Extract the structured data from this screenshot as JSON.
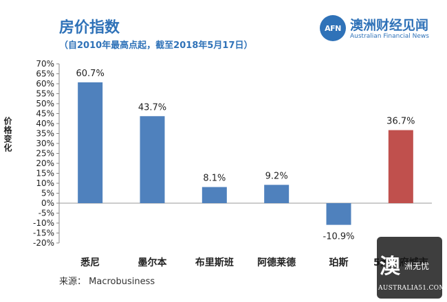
{
  "header": {
    "title": "房价指数",
    "subtitle": "（自2010年最高点起，截至2018年5月17日）"
  },
  "logo": {
    "mark": "AFN",
    "cn": "澳洲财经见闻",
    "en": "Australian Financial News"
  },
  "source": "来源： Macrobusiness",
  "watermark_badge": {
    "main": "澳",
    "side": "洲无忧",
    "url": "AUSTRALIA51.COM"
  },
  "colors": {
    "bar_blue": "#4f81bd",
    "bar_red": "#c0504d",
    "title_blue": "#2f72b8"
  },
  "chart_data": {
    "type": "bar",
    "title": "房价指数",
    "subtitle": "（自2010年最高点起，截至2018年5月17日）",
    "xlabel": "",
    "ylabel": "价格变化",
    "ylim": [
      -20,
      70
    ],
    "y_ticks": [
      "-20%",
      "-15%",
      "-10%",
      "-5%",
      "0%",
      "5%",
      "10%",
      "15%",
      "20%",
      "25%",
      "30%",
      "35%",
      "40%",
      "45%",
      "50%",
      "55%",
      "60%",
      "65%",
      "70%"
    ],
    "categories": [
      "悉尼",
      "墨尔本",
      "布里斯班",
      "阿德莱德",
      "珀斯",
      "5大首府城市"
    ],
    "values": [
      60.7,
      43.7,
      8.1,
      9.2,
      -10.9,
      36.7
    ],
    "data_labels": [
      "60.7%",
      "43.7%",
      "8.1%",
      "9.2%",
      "-10.9%",
      "36.7%"
    ],
    "highlight_index": 5,
    "grid": false,
    "legend": "none"
  }
}
